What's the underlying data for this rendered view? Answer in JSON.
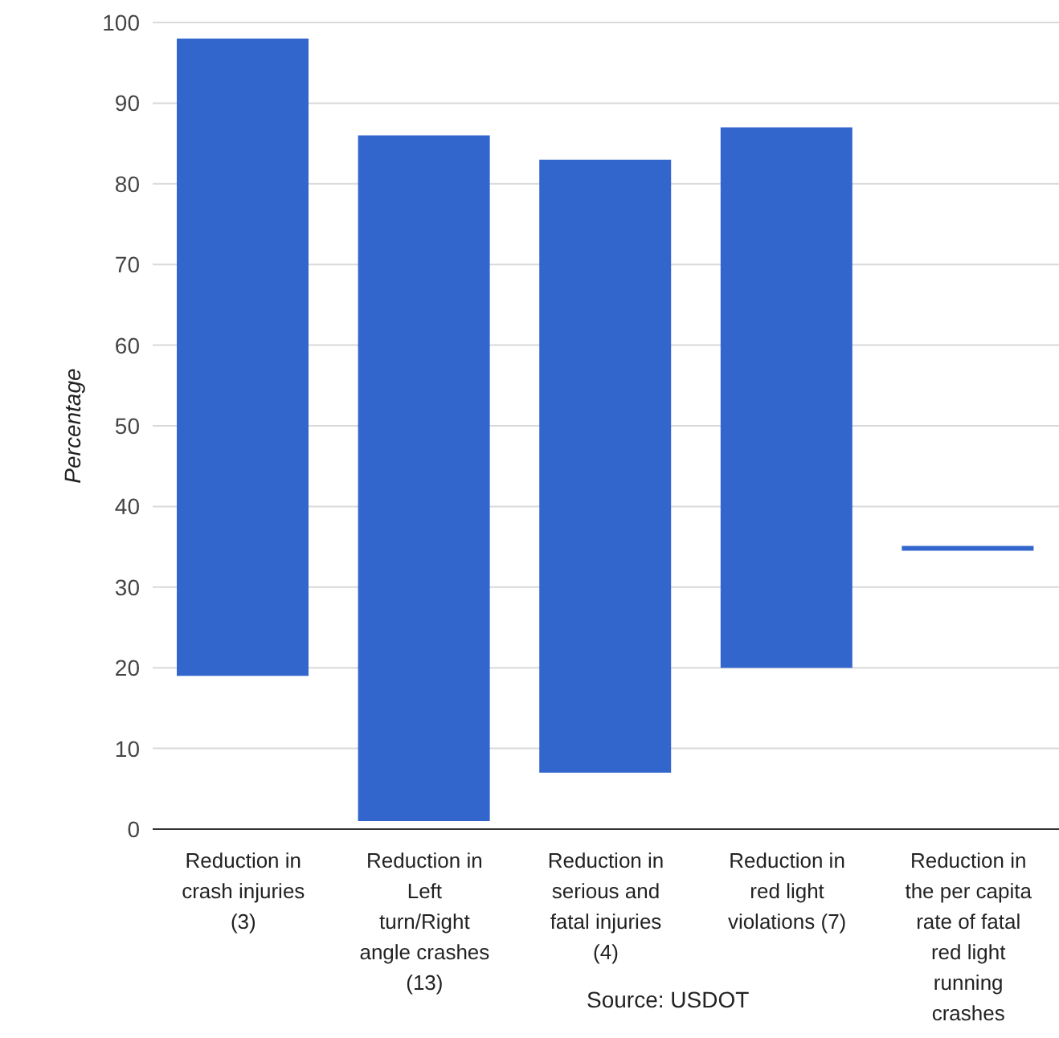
{
  "chart_data": {
    "type": "bar",
    "ylabel": "Percentage",
    "categories": [
      "Reduction in crash injuries (3)",
      "Reduction in Left turn/Right angle crashes (13)",
      "Reduction in serious and fatal injuries (4)",
      "Reduction in red light violations (7)",
      "Reduction in the per capita rate of fatal red light running crashes"
    ],
    "base": [
      19,
      1,
      7,
      20,
      34.5
    ],
    "values": [
      79,
      85,
      76,
      67,
      0.6
    ],
    "color": "#3366cc",
    "ylim": [
      0,
      100
    ],
    "yticks": [
      0,
      10,
      20,
      30,
      40,
      50,
      60,
      70,
      80,
      90,
      100
    ],
    "grid": "y",
    "legend": false,
    "annotations": [
      "Source: USDOT"
    ]
  }
}
